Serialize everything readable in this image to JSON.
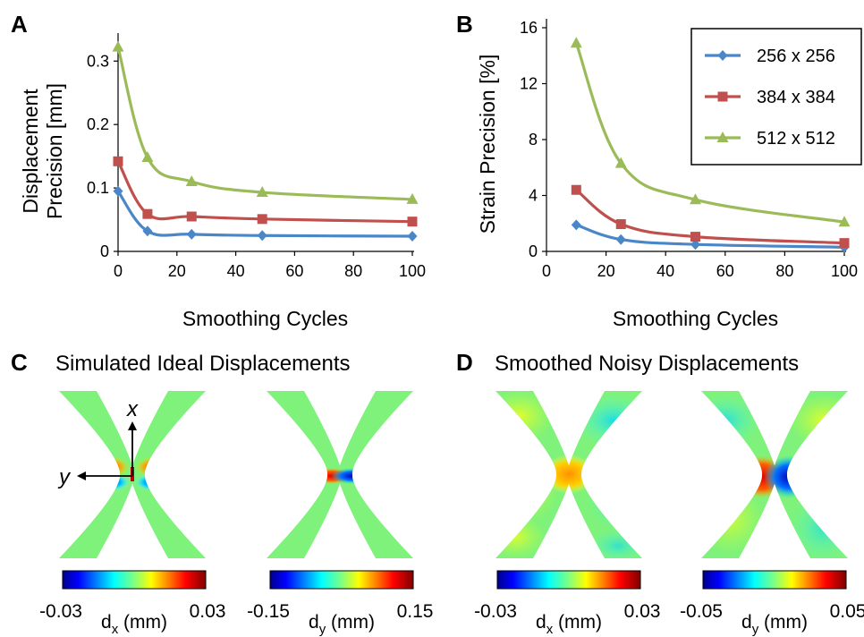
{
  "panels": {
    "a": {
      "letter": "A"
    },
    "b": {
      "letter": "B"
    },
    "c": {
      "letter": "C",
      "title": "Simulated Ideal Displacements"
    },
    "d": {
      "letter": "D",
      "title": "Smoothed Noisy Displacements"
    }
  },
  "chart_data": [
    {
      "type": "line",
      "panel": "A",
      "title": "",
      "xlabel": "Smoothing Cycles",
      "ylabel": [
        "Displacement",
        "Precision [mm]"
      ],
      "xlim": [
        0,
        100
      ],
      "ylim": [
        0,
        0.33
      ],
      "xticks": [
        0,
        20,
        40,
        60,
        80,
        100
      ],
      "yticks": [
        0,
        0.1,
        0.2,
        0.3
      ],
      "ytick_labels": [
        "0",
        "0.1",
        "0.2",
        "0.3"
      ],
      "grid": false,
      "series": [
        {
          "name": "256 x 256",
          "color": "#4a86c8",
          "marker": "diamond",
          "x": [
            0,
            10,
            25,
            49,
            100
          ],
          "y": [
            0.095,
            0.032,
            0.027,
            0.025,
            0.024
          ]
        },
        {
          "name": "384 x 384",
          "color": "#c0504d",
          "marker": "square",
          "x": [
            0,
            10,
            25,
            49,
            100
          ],
          "y": [
            0.142,
            0.059,
            0.055,
            0.051,
            0.047
          ]
        },
        {
          "name": "512 x 512",
          "color": "#9bbb59",
          "marker": "triangle",
          "x": [
            0,
            10,
            25,
            49,
            100
          ],
          "y": [
            0.322,
            0.148,
            0.11,
            0.093,
            0.082
          ]
        }
      ]
    },
    {
      "type": "line",
      "panel": "B",
      "title": "",
      "xlabel": "Smoothing Cycles",
      "ylabel": [
        "Strain Precision [%]"
      ],
      "xlim": [
        0,
        100
      ],
      "ylim": [
        0,
        16
      ],
      "xticks": [
        0,
        20,
        40,
        60,
        80,
        100
      ],
      "yticks": [
        0,
        4,
        8,
        12,
        16
      ],
      "ytick_labels": [
        "0",
        "4",
        "8",
        "12",
        "16"
      ],
      "grid": false,
      "legend": "top-right",
      "series": [
        {
          "name": "256 x 256",
          "color": "#4a86c8",
          "marker": "diamond",
          "x": [
            10,
            25,
            50,
            100
          ],
          "y": [
            1.9,
            0.85,
            0.5,
            0.3
          ]
        },
        {
          "name": "384 x 384",
          "color": "#c0504d",
          "marker": "square",
          "x": [
            10,
            25,
            50,
            100
          ],
          "y": [
            4.4,
            1.95,
            1.05,
            0.6
          ]
        },
        {
          "name": "512 x 512",
          "color": "#9bbb59",
          "marker": "triangle",
          "x": [
            10,
            25,
            50,
            100
          ],
          "y": [
            14.9,
            6.3,
            3.7,
            2.1
          ]
        }
      ]
    },
    {
      "type": "heatmap",
      "panel": "C",
      "maps": [
        {
          "component": "dx",
          "cbar_min": "-0.03",
          "cbar_max": "0.03",
          "label_main": "d",
          "label_sub": "x",
          "label_unit": " (mm)",
          "axes_labels": {
            "x": "x",
            "y": "y"
          }
        },
        {
          "component": "dy",
          "cbar_min": "-0.15",
          "cbar_max": "0.15",
          "label_main": "d",
          "label_sub": "y",
          "label_unit": " (mm)"
        }
      ]
    },
    {
      "type": "heatmap",
      "panel": "D",
      "maps": [
        {
          "component": "dx",
          "cbar_min": "-0.03",
          "cbar_max": "0.03",
          "label_main": "d",
          "label_sub": "x",
          "label_unit": " (mm)"
        },
        {
          "component": "dy",
          "cbar_min": "-0.05",
          "cbar_max": "0.05",
          "label_main": "d",
          "label_sub": "y",
          "label_unit": " (mm)"
        }
      ]
    }
  ]
}
